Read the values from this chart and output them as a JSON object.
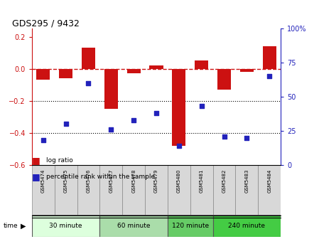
{
  "title": "GDS295 / 9432",
  "samples": [
    "GSM5474",
    "GSM5475",
    "GSM5476",
    "GSM5477",
    "GSM5478",
    "GSM5479",
    "GSM5480",
    "GSM5481",
    "GSM5482",
    "GSM5483",
    "GSM5484"
  ],
  "log_ratios": [
    -0.07,
    -0.06,
    0.13,
    -0.25,
    -0.03,
    0.02,
    -0.48,
    0.05,
    -0.13,
    -0.02,
    0.14
  ],
  "percentile_pcts": [
    18,
    30,
    60,
    26,
    33,
    38,
    14,
    43,
    21,
    20,
    65
  ],
  "bar_color": "#cc1111",
  "dot_color": "#2222bb",
  "zeroline_color": "#cc1111",
  "groups": [
    {
      "label": "30 minute",
      "start": 0,
      "end": 3,
      "color": "#ddffdd"
    },
    {
      "label": "60 minute",
      "start": 3,
      "end": 6,
      "color": "#aaddaa"
    },
    {
      "label": "120 minute",
      "start": 6,
      "end": 8,
      "color": "#66cc66"
    },
    {
      "label": "240 minute",
      "start": 8,
      "end": 11,
      "color": "#44cc44"
    }
  ],
  "ylim_left": [
    -0.6,
    0.25
  ],
  "ylim_right": [
    0,
    100
  ],
  "left_ticks": [
    -0.6,
    -0.4,
    -0.2,
    0.0,
    0.2
  ],
  "right_ticks": [
    0,
    25,
    50,
    75,
    100
  ]
}
